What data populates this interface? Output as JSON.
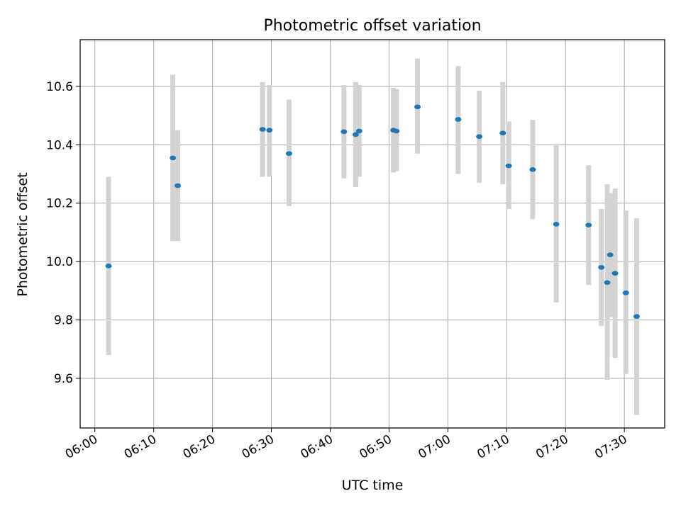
{
  "chart_data": {
    "type": "scatter",
    "title": "Photometric offset variation",
    "xlabel": "UTC time",
    "ylabel": "Photometric offset",
    "x_ticks": [
      "06:00",
      "06:10",
      "06:20",
      "06:30",
      "06:40",
      "06:50",
      "07:00",
      "07:10",
      "07:20",
      "07:30"
    ],
    "y_ticks": [
      "9.6",
      "9.8",
      "10.0",
      "10.2",
      "10.4",
      "10.6"
    ],
    "xlim": [
      "05:57:30",
      "07:36:51"
    ],
    "ylim": [
      9.43,
      10.76
    ],
    "grid": true,
    "colors": {
      "marker": "#1f77b4",
      "errorbar": "#d3d3d3",
      "grid": "#b0b0b0"
    },
    "series": [
      {
        "points": [
          {
            "t": "06:02:20",
            "y": 9.985,
            "lo": 9.68,
            "hi": 10.29
          },
          {
            "t": "06:13:15",
            "y": 10.355,
            "lo": 10.07,
            "hi": 10.64
          },
          {
            "t": "06:14:05",
            "y": 10.26,
            "lo": 10.07,
            "hi": 10.45
          },
          {
            "t": "06:28:30",
            "y": 10.453,
            "lo": 10.29,
            "hi": 10.615
          },
          {
            "t": "06:29:40",
            "y": 10.45,
            "lo": 10.29,
            "hi": 10.605
          },
          {
            "t": "06:33:00",
            "y": 10.37,
            "lo": 10.19,
            "hi": 10.555
          },
          {
            "t": "06:42:20",
            "y": 10.445,
            "lo": 10.285,
            "hi": 10.605
          },
          {
            "t": "06:44:20",
            "y": 10.435,
            "lo": 10.255,
            "hi": 10.615
          },
          {
            "t": "06:44:55",
            "y": 10.447,
            "lo": 10.29,
            "hi": 10.605
          },
          {
            "t": "06:50:45",
            "y": 10.45,
            "lo": 10.305,
            "hi": 10.595
          },
          {
            "t": "06:51:15",
            "y": 10.447,
            "lo": 10.31,
            "hi": 10.59
          },
          {
            "t": "06:54:50",
            "y": 10.53,
            "lo": 10.37,
            "hi": 10.695
          },
          {
            "t": "07:01:45",
            "y": 10.487,
            "lo": 10.3,
            "hi": 10.67
          },
          {
            "t": "07:05:20",
            "y": 10.428,
            "lo": 10.27,
            "hi": 10.585
          },
          {
            "t": "07:09:20",
            "y": 10.44,
            "lo": 10.265,
            "hi": 10.615
          },
          {
            "t": "07:10:20",
            "y": 10.328,
            "lo": 10.18,
            "hi": 10.48
          },
          {
            "t": "07:14:25",
            "y": 10.315,
            "lo": 10.145,
            "hi": 10.485
          },
          {
            "t": "07:18:25",
            "y": 10.128,
            "lo": 9.86,
            "hi": 10.4
          },
          {
            "t": "07:23:55",
            "y": 10.125,
            "lo": 9.92,
            "hi": 10.33
          },
          {
            "t": "07:26:05",
            "y": 9.98,
            "lo": 9.78,
            "hi": 10.18
          },
          {
            "t": "07:27:05",
            "y": 9.928,
            "lo": 9.595,
            "hi": 10.265
          },
          {
            "t": "07:27:35",
            "y": 10.023,
            "lo": 9.81,
            "hi": 10.235
          },
          {
            "t": "07:28:25",
            "y": 9.96,
            "lo": 9.67,
            "hi": 10.25
          },
          {
            "t": "07:30:15",
            "y": 9.893,
            "lo": 9.615,
            "hi": 10.175
          },
          {
            "t": "07:32:05",
            "y": 9.812,
            "lo": 9.475,
            "hi": 10.148
          }
        ]
      }
    ]
  }
}
